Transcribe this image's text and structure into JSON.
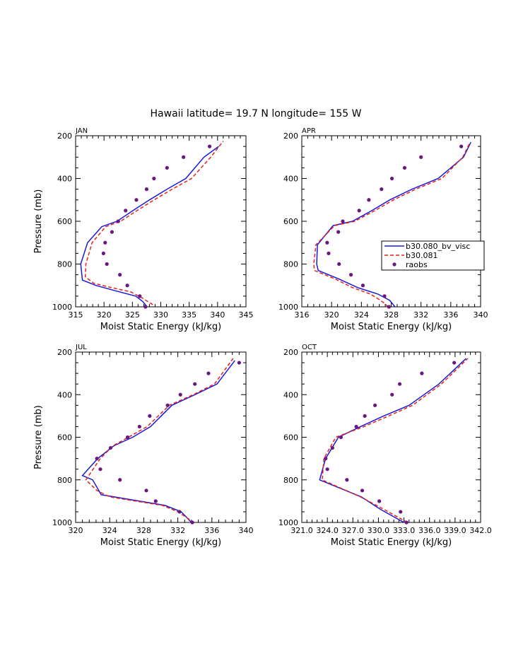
{
  "figure": {
    "title": "Hawaii  latitude= 19.7 N longitude= 155 W"
  },
  "legend": {
    "location": "panel APR, right edge",
    "entries": [
      {
        "label": "b30.080_bv_visc",
        "style": "solid",
        "color": "#1a1ad9"
      },
      {
        "label": "b30.081",
        "style": "dashed",
        "color": "#e8201a"
      },
      {
        "label": "raobs",
        "style": "dots",
        "color": "#6b1780"
      }
    ]
  },
  "chart_data": [
    {
      "type": "line",
      "panel": "JAN",
      "title": "JAN",
      "xlabel": "Moist Static Energy (kJ/kg)",
      "ylabel": "Pressure (mb)",
      "xlim": [
        315,
        345
      ],
      "ylim": [
        1000,
        200
      ],
      "y_inverted": true,
      "xticks": [
        315,
        320,
        325,
        330,
        335,
        340,
        345
      ],
      "xtick_labels": [
        "315",
        "320",
        "325",
        "330",
        "335",
        "340",
        "345"
      ],
      "yticks": [
        200,
        400,
        600,
        800,
        1000
      ],
      "ytick_labels": [
        "200",
        "400",
        "600",
        "800",
        "1000"
      ],
      "series": [
        {
          "name": "b30.080_bv_visc",
          "style": "solid",
          "color": "#1a1ad9",
          "x": [
            327.6,
            326.8,
            325.6,
            322.0,
            318.6,
            316.2,
            315.9,
            317.1,
            319.6,
            322.3,
            325.1,
            328.0,
            331.1,
            334.4,
            337.6,
            340.2
          ],
          "y": [
            1000,
            975,
            950,
            925,
            900,
            875,
            800,
            700,
            625,
            600,
            550,
            500,
            450,
            400,
            300,
            250
          ]
        },
        {
          "name": "b30.081",
          "style": "dashed",
          "color": "#e8201a",
          "x": [
            328.6,
            326.8,
            324.7,
            321.3,
            318.2,
            316.7,
            316.8,
            317.9,
            320.3,
            322.9,
            325.8,
            328.8,
            332.0,
            335.4,
            338.8,
            341.0
          ],
          "y": [
            990,
            960,
            930,
            910,
            890,
            860,
            800,
            700,
            625,
            600,
            550,
            500,
            450,
            400,
            300,
            225
          ]
        },
        {
          "name": "raobs",
          "style": "dots",
          "color": "#6b1780",
          "x": [
            327.3,
            326.3,
            324.1,
            322.8,
            320.5,
            319.9,
            320.2,
            321.4,
            322.5,
            323.8,
            325.7,
            327.5,
            328.8,
            331.1,
            334.0,
            338.6
          ],
          "y": [
            1000,
            950,
            900,
            850,
            800,
            750,
            700,
            650,
            600,
            550,
            500,
            450,
            400,
            350,
            300,
            250
          ]
        }
      ]
    },
    {
      "type": "line",
      "panel": "APR",
      "title": "APR",
      "xlabel": "Moist Static Energy (kJ/kg)",
      "ylabel": "",
      "xlim": [
        316,
        340
      ],
      "ylim": [
        1000,
        200
      ],
      "y_inverted": true,
      "xticks": [
        316,
        320,
        324,
        328,
        332,
        336,
        340
      ],
      "xtick_labels": [
        "316",
        "320",
        "324",
        "328",
        "332",
        "336",
        "340"
      ],
      "yticks": [
        200,
        400,
        600,
        800,
        1000
      ],
      "ytick_labels": [
        "200",
        "400",
        "600",
        "800",
        "1000"
      ],
      "series": [
        {
          "name": "b30.080_bv_visc",
          "style": "solid",
          "color": "#1a1ad9",
          "x": [
            328.5,
            327.8,
            326.2,
            323.5,
            321.0,
            318.2,
            318.0,
            318.1,
            320.2,
            322.8,
            325.4,
            327.8,
            330.8,
            334.3,
            337.7,
            338.7
          ],
          "y": [
            1000,
            970,
            940,
            910,
            870,
            830,
            800,
            710,
            620,
            600,
            550,
            500,
            450,
            400,
            300,
            230
          ]
        },
        {
          "name": "b30.081",
          "style": "dashed",
          "color": "#e8201a",
          "x": [
            327.6,
            326.6,
            325.2,
            322.8,
            320.5,
            317.7,
            317.6,
            317.9,
            320.4,
            323.1,
            325.8,
            328.3,
            331.3,
            334.8,
            337.6,
            338.6
          ],
          "y": [
            1000,
            970,
            940,
            910,
            870,
            830,
            800,
            710,
            620,
            600,
            550,
            500,
            450,
            400,
            300,
            230
          ]
        },
        {
          "name": "raobs",
          "style": "dots",
          "color": "#6b1780",
          "x": [
            327.7,
            327.1,
            324.2,
            322.6,
            321.0,
            319.6,
            319.4,
            320.9,
            321.5,
            323.7,
            325.0,
            326.7,
            328.1,
            329.8,
            332.0,
            337.4
          ],
          "y": [
            1000,
            950,
            900,
            850,
            800,
            750,
            700,
            650,
            600,
            550,
            500,
            450,
            400,
            350,
            300,
            250
          ]
        }
      ]
    },
    {
      "type": "line",
      "panel": "JUL",
      "title": "JUL",
      "xlabel": "Moist Static Energy (kJ/kg)",
      "ylabel": "Pressure (mb)",
      "xlim": [
        320,
        340
      ],
      "ylim": [
        1000,
        200
      ],
      "y_inverted": true,
      "xticks": [
        320,
        324,
        328,
        332,
        336,
        340
      ],
      "xtick_labels": [
        "320",
        "324",
        "328",
        "332",
        "336",
        "340"
      ],
      "yticks": [
        200,
        400,
        600,
        800,
        1000
      ],
      "ytick_labels": [
        "200",
        "400",
        "600",
        "800",
        "1000"
      ],
      "series": [
        {
          "name": "b30.080_bv_visc",
          "style": "solid",
          "color": "#1a1ad9",
          "x": [
            333.6,
            332.4,
            330.5,
            323.0,
            322.0,
            320.8,
            322.6,
            324.5,
            326.7,
            328.8,
            331.3,
            334.0,
            336.6,
            338.7
          ],
          "y": [
            1000,
            950,
            920,
            870,
            800,
            780,
            700,
            640,
            600,
            550,
            450,
            400,
            350,
            240
          ]
        },
        {
          "name": "b30.081",
          "style": "dashed",
          "color": "#e8201a",
          "x": [
            333.9,
            332.0,
            330.2,
            324.0,
            322.5,
            321.2,
            322.9,
            324.4,
            326.2,
            328.4,
            331.0,
            333.8,
            336.3,
            338.5
          ],
          "y": [
            1000,
            950,
            920,
            880,
            850,
            800,
            700,
            640,
            600,
            550,
            450,
            400,
            350,
            230
          ]
        },
        {
          "name": "raobs",
          "style": "dots",
          "color": "#6b1780",
          "x": [
            333.7,
            332.2,
            329.4,
            328.3,
            325.2,
            322.9,
            322.5,
            324.1,
            326.1,
            327.5,
            328.7,
            330.8,
            332.3,
            334.0,
            335.6,
            339.2
          ],
          "y": [
            1000,
            950,
            900,
            850,
            800,
            750,
            700,
            650,
            600,
            550,
            500,
            450,
            400,
            350,
            300,
            250
          ]
        }
      ]
    },
    {
      "type": "line",
      "panel": "OCT",
      "title": "OCT",
      "xlabel": "Moist Static Energy (kJ/kg)",
      "ylabel": "",
      "xlim": [
        321.0,
        342.0
      ],
      "ylim": [
        1000,
        200
      ],
      "y_inverted": true,
      "xticks": [
        321.0,
        324.0,
        327.0,
        330.0,
        333.0,
        336.0,
        339.0,
        342.0
      ],
      "xtick_labels": [
        "321.0",
        "324.0",
        "327.0",
        "330.0",
        "333.0",
        "336.0",
        "339.0",
        "342.0"
      ],
      "yticks": [
        200,
        400,
        600,
        800,
        1000
      ],
      "ytick_labels": [
        "200",
        "400",
        "600",
        "800",
        "1000"
      ],
      "series": [
        {
          "name": "b30.080_bv_visc",
          "style": "solid",
          "color": "#1a1ad9",
          "x": [
            333.0,
            330.3,
            328.0,
            323.1,
            323.8,
            325.3,
            327.9,
            330.6,
            333.6,
            337.1,
            340.3
          ],
          "y": [
            1000,
            940,
            880,
            800,
            700,
            600,
            550,
            500,
            450,
            350,
            230
          ]
        },
        {
          "name": "b30.081",
          "style": "dashed",
          "color": "#e8201a",
          "x": [
            333.4,
            330.7,
            327.9,
            323.4,
            323.6,
            325.0,
            328.3,
            331.2,
            334.0,
            337.4,
            340.5
          ],
          "y": [
            1000,
            940,
            880,
            800,
            700,
            600,
            550,
            500,
            450,
            350,
            230
          ]
        },
        {
          "name": "raobs",
          "style": "dots",
          "color": "#6b1780",
          "x": [
            333.3,
            332.6,
            330.1,
            328.1,
            326.3,
            324.0,
            323.8,
            324.6,
            325.6,
            327.4,
            328.4,
            329.6,
            331.6,
            332.5,
            335.1,
            338.9
          ],
          "y": [
            1000,
            950,
            900,
            850,
            800,
            750,
            700,
            650,
            600,
            550,
            500,
            450,
            400,
            350,
            300,
            250
          ]
        }
      ]
    }
  ]
}
